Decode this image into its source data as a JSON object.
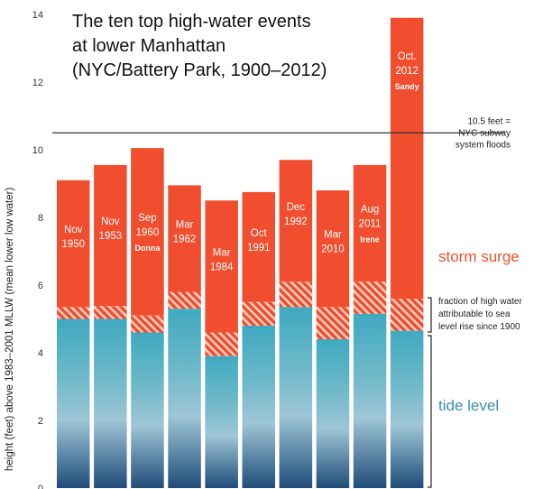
{
  "chart_data": {
    "type": "bar",
    "title_lines": [
      "The ten top high-water events",
      "at lower Manhattan",
      "(NYC/Battery Park, 1900–2012)"
    ],
    "ylabel": "height (feet) above 1983–2001 MLLW (mean lower low water)",
    "ylim": [
      0,
      14
    ],
    "yticks": [
      "0",
      "2",
      "4",
      "6",
      "8",
      "10",
      "12",
      "14"
    ],
    "series_names": [
      "tide level",
      "fraction of high water attributable to sea level rise since 1900",
      "storm surge"
    ],
    "bars": [
      {
        "label": [
          "Nov",
          "1950"
        ],
        "name": "",
        "total": 9.1,
        "tide": 5.0,
        "slr": 0.35
      },
      {
        "label": [
          "Nov",
          "1953"
        ],
        "name": "",
        "total": 9.55,
        "tide": 5.0,
        "slr": 0.38
      },
      {
        "label": [
          "Sep",
          "1960"
        ],
        "name": "Donna",
        "total": 10.05,
        "tide": 4.6,
        "slr": 0.5
      },
      {
        "label": [
          "Mar",
          "1962"
        ],
        "name": "",
        "total": 8.95,
        "tide": 5.3,
        "slr": 0.5
      },
      {
        "label": [
          "Mar",
          "1984"
        ],
        "name": "",
        "total": 8.5,
        "tide": 3.9,
        "slr": 0.7
      },
      {
        "label": [
          "Oct",
          "1991"
        ],
        "name": "",
        "total": 8.75,
        "tide": 4.8,
        "slr": 0.7
      },
      {
        "label": [
          "Dec",
          "1992"
        ],
        "name": "",
        "total": 9.7,
        "tide": 5.35,
        "slr": 0.75
      },
      {
        "label": [
          "Mar",
          "2010"
        ],
        "name": "",
        "total": 8.8,
        "tide": 4.4,
        "slr": 0.95
      },
      {
        "label": [
          "Aug",
          "2011"
        ],
        "name": "Irene",
        "total": 9.55,
        "tide": 5.15,
        "slr": 0.95
      },
      {
        "label": [
          "Oct.",
          "2012"
        ],
        "name": "Sandy",
        "total": 13.9,
        "tide": 4.65,
        "slr": 0.95
      }
    ],
    "reference_line": {
      "value": 10.5,
      "label": [
        "10.5 feet =",
        "NYC subway",
        "system floods"
      ]
    },
    "annotations": {
      "storm_surge": "storm surge",
      "slr": [
        "fraction of high water",
        "attributable to sea",
        "level rise since 1900"
      ],
      "tide": "tide level"
    },
    "colors": {
      "surge": "#f04e2e",
      "hatch": "#f5a48c",
      "tide_top": "#4bb3c4",
      "tide_bottom": "#1e4d78",
      "reference": "#333333"
    }
  }
}
